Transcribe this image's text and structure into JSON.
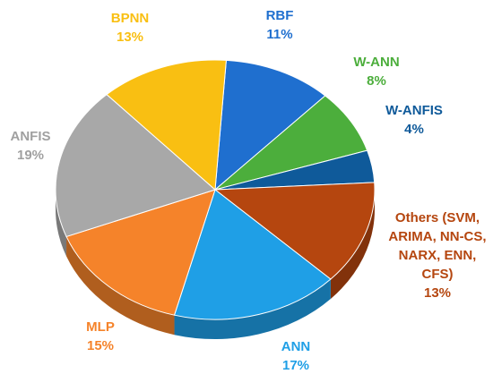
{
  "chart_data": {
    "type": "pie",
    "title": "",
    "slices": [
      {
        "label": "RBF",
        "value": 11,
        "percent_label": "11%",
        "color": "#1f6fcf"
      },
      {
        "label": "W-ANN",
        "value": 8,
        "percent_label": "8%",
        "color": "#4cae3c"
      },
      {
        "label": "W-ANFIS",
        "value": 4,
        "percent_label": "4%",
        "color": "#0f5a9a"
      },
      {
        "label": "Others (SVM, ARIMA, NN-CS, NARX, ENN, CFS)",
        "label_lines": [
          "Others (SVM,",
          "ARIMA, NN-CS,",
          "NARX, ENN,",
          "CFS)"
        ],
        "value": 13,
        "percent_label": "13%",
        "color": "#b5460f"
      },
      {
        "label": "ANN",
        "value": 17,
        "percent_label": "17%",
        "color": "#1f9fe6"
      },
      {
        "label": "MLP",
        "value": 15,
        "percent_label": "15%",
        "color": "#f5832a"
      },
      {
        "label": "ANFIS",
        "value": 19,
        "percent_label": "19%",
        "color": "#a8a8a8"
      },
      {
        "label": "BPNN",
        "value": 13,
        "percent_label": "13%",
        "color": "#f9bf12"
      }
    ],
    "legend": "none",
    "style": "3d-tilted"
  }
}
